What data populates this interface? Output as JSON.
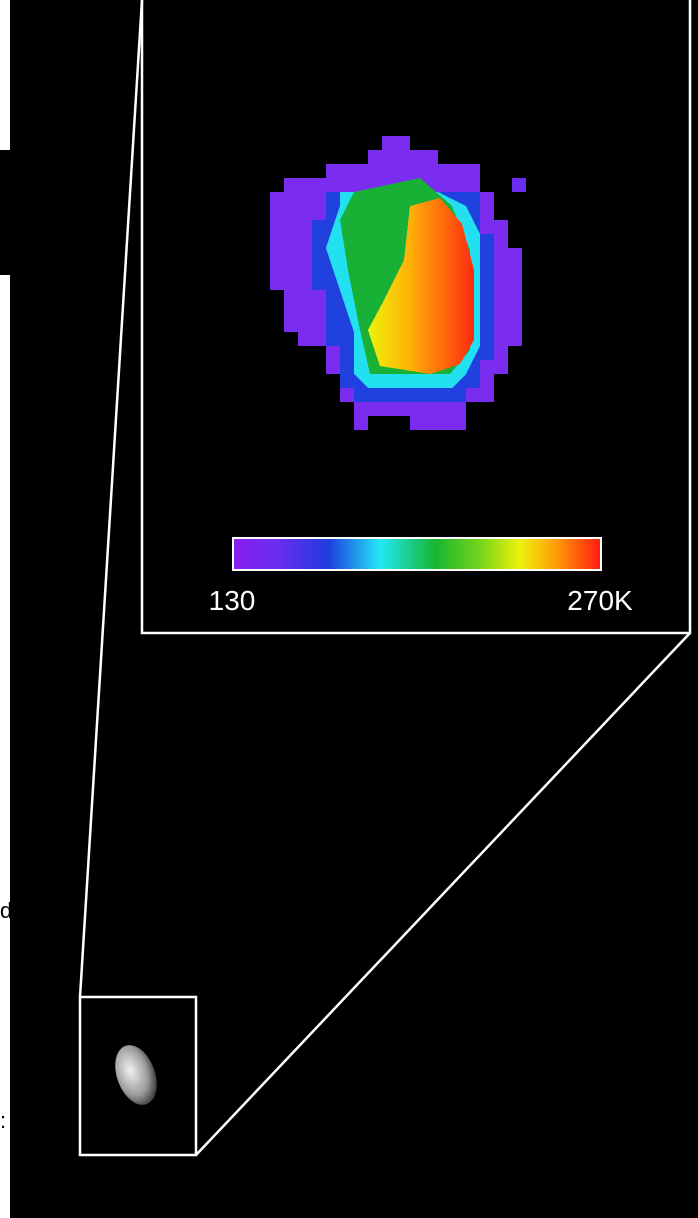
{
  "colorbar": {
    "min_label": "130",
    "max_label": "270K"
  },
  "edge_fragments": [
    "d",
    ":"
  ]
}
